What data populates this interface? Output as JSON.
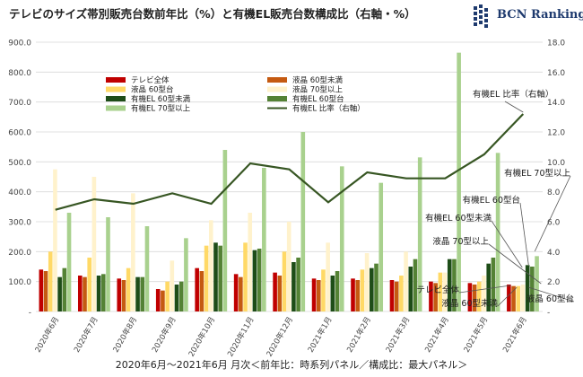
{
  "title": "テレビのサイズ帯別販売台数前年比（%）と有機EL販売台数構成比（右軸・%）",
  "logo_text": "BCN Ranking",
  "caption": "2020年6月～2021年6月 月次＜前年比：時系列パネル／構成比：最大パネル＞",
  "chart_data": {
    "type": "bar",
    "categories": [
      "2020年6月",
      "2020年7月",
      "2020年8月",
      "2020年9月",
      "2020年10月",
      "2020年11月",
      "2020年12月",
      "2021年1月",
      "2021年2月",
      "2021年3月",
      "2021年4月",
      "2021年5月",
      "2021年6月"
    ],
    "y_left_ticks": [
      "-",
      "100.0",
      "200.0",
      "300.0",
      "400.0",
      "500.0",
      "600.0",
      "700.0",
      "800.0",
      "900.0"
    ],
    "y_right_ticks": [
      "-",
      "2.0",
      "4.0",
      "6.0",
      "8.0",
      "10.0",
      "12.0",
      "14.0",
      "16.0",
      "18.0"
    ],
    "ylim_left": [
      0,
      900
    ],
    "ylim_right": [
      0,
      18
    ],
    "grid": true,
    "legend_position": "top-left inside plot",
    "series": [
      {
        "name": "テレビ全体",
        "color": "#c00000",
        "values": [
          140,
          120,
          110,
          75,
          145,
          125,
          130,
          110,
          110,
          105,
          100,
          95,
          90
        ]
      },
      {
        "name": "液晶 60型未満",
        "color": "#c55a11",
        "values": [
          135,
          115,
          105,
          70,
          135,
          115,
          120,
          105,
          105,
          100,
          95,
          90,
          85
        ]
      },
      {
        "name": "液晶 60型台",
        "color": "#ffd966",
        "values": [
          200,
          180,
          145,
          100,
          220,
          230,
          200,
          140,
          140,
          120,
          130,
          100,
          85
        ]
      },
      {
        "name": "液晶 70型以上",
        "color": "#fff2cc",
        "values": [
          475,
          450,
          395,
          170,
          305,
          330,
          300,
          230,
          195,
          200,
          130,
          120,
          90
        ]
      },
      {
        "name": "有機EL 60型未満",
        "color": "#1e4d18",
        "values": [
          115,
          120,
          115,
          90,
          230,
          205,
          165,
          120,
          145,
          150,
          175,
          160,
          155
        ]
      },
      {
        "name": "有機EL 60型台",
        "color": "#548235",
        "values": [
          145,
          125,
          115,
          100,
          220,
          210,
          180,
          135,
          160,
          175,
          175,
          180,
          150
        ]
      },
      {
        "name": "有機EL 70型以上",
        "color": "#a9d18e",
        "values": [
          330,
          315,
          285,
          245,
          540,
          480,
          600,
          485,
          430,
          515,
          865,
          530,
          185
        ]
      }
    ],
    "line": {
      "name": "有機EL 比率（右軸）",
      "color": "#375623",
      "values": [
        6.8,
        7.5,
        7.2,
        7.9,
        7.2,
        9.9,
        9.5,
        7.3,
        9.3,
        8.9,
        8.9,
        10.5,
        13.2
      ]
    },
    "annotations": {
      "line_label": "有機EL 比率（右軸）",
      "label_oled70": "有機EL 70型以上",
      "label_oled60": "有機EL 60型台",
      "label_oled60u": "有機EL 60型未満",
      "label_lcd70": "液晶 70型以上",
      "label_tv": "テレビ全体",
      "label_lcd60u": "液晶 60型未満",
      "label_lcd60": "液晶 60型台"
    }
  }
}
